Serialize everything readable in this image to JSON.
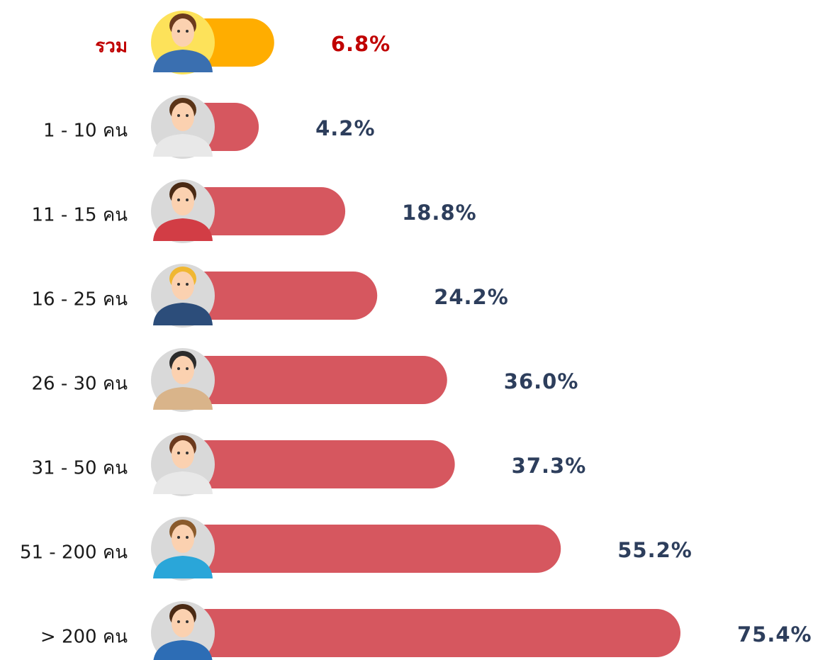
{
  "chart_data": {
    "type": "bar",
    "categories": [
      "รวม",
      "1 - 10 คน",
      "11 - 15 คน",
      "16 - 25 คน",
      "26 - 30 คน",
      "31 - 50 คน",
      "51 - 200 คน",
      "> 200 คน"
    ],
    "values": [
      6.8,
      4.2,
      18.8,
      24.2,
      36.0,
      37.3,
      55.2,
      75.4
    ],
    "value_labels": [
      "6.8%",
      "4.2%",
      "18.8%",
      "24.2%",
      "36.0%",
      "37.3%",
      "55.2%",
      "75.4%"
    ],
    "colors": [
      "#ffad00",
      "#d6575f",
      "#d6575f",
      "#d6575f",
      "#d6575f",
      "#d6575f",
      "#d6575f",
      "#d6575f"
    ],
    "label_colors": [
      "#c00000",
      "#2d3e5c",
      "#2d3e5c",
      "#2d3e5c",
      "#2d3e5c",
      "#2d3e5c",
      "#2d3e5c",
      "#2d3e5c"
    ]
  }
}
